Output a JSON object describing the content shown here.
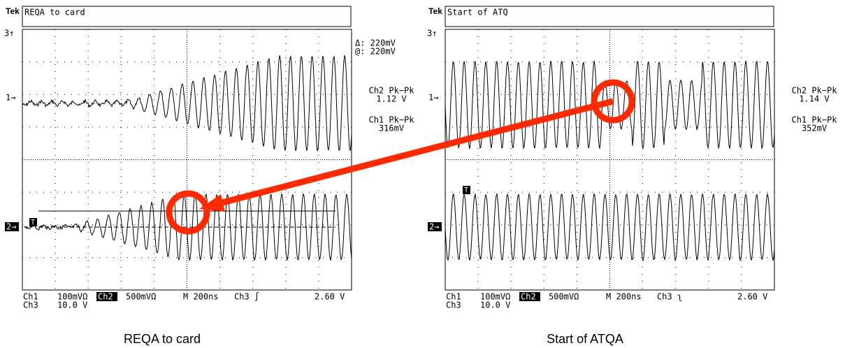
{
  "panels": [
    {
      "brand": "Tek",
      "title": "REQA to card",
      "cursor": [
        "Δ: 220mV",
        "@: 220mV"
      ],
      "readouts": [
        {
          "label": "Ch2 Pk−Pk",
          "value": "1.12 V"
        },
        {
          "label": "Ch1 Pk−Pk",
          "value": "316mV"
        }
      ],
      "markers": {
        "top": "3↑",
        "ch1": "1→",
        "ch2": "2→",
        "trigger": "T"
      },
      "status": {
        "line1": [
          "Ch1",
          "100mVΩ",
          "Ch2",
          "500mVΩ",
          "M 200ns",
          "Ch3 ∫",
          "2.60 V"
        ],
        "line2": [
          "Ch3",
          "10.0 V"
        ]
      },
      "caption": "REQA to card"
    },
    {
      "brand": "Tek",
      "title": "Start of ATQ",
      "cursor": [],
      "readouts": [
        {
          "label": "Ch2 Pk−Pk",
          "value": "1.14 V"
        },
        {
          "label": "Ch1 Pk−Pk",
          "value": "352mV"
        }
      ],
      "markers": {
        "top": "3↑",
        "ch1": "1→",
        "ch2": "2→",
        "trigger": "T"
      },
      "status": {
        "line1": [
          "Ch1",
          "100mVΩ",
          "Ch2",
          "500mVΩ",
          "M 200ns",
          "Ch3 ʅ",
          "2.60 V"
        ],
        "line2": [
          "Ch3",
          "10.0 V"
        ]
      },
      "caption": "Start of ATQA"
    }
  ]
}
